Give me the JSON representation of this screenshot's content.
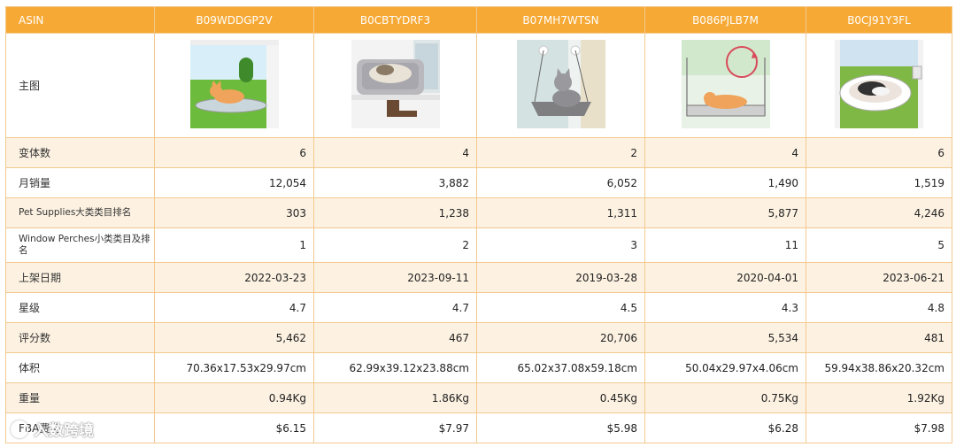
{
  "header": {
    "col0": "ASIN",
    "asins": [
      "B09WDDGP2V",
      "B0CBTYDRF3",
      "B07MH7WTSN",
      "B086PJLB7M",
      "B0CJ91Y3FL"
    ]
  },
  "rows": {
    "main_image": {
      "label": "主图"
    },
    "variants": {
      "label": "变体数",
      "values": [
        "6",
        "4",
        "2",
        "4",
        "6"
      ]
    },
    "monthly_sales": {
      "label": "月销量",
      "values": [
        "12,054",
        "3,882",
        "6,052",
        "1,490",
        "1,519"
      ]
    },
    "main_rank": {
      "label": "Pet Supplies大类类目排名",
      "values": [
        "303",
        "1,238",
        "1,311",
        "5,877",
        "4,246"
      ]
    },
    "sub_rank": {
      "label": "Window Perches小类类目及排名",
      "values": [
        "1",
        "2",
        "3",
        "11",
        "5"
      ]
    },
    "date": {
      "label": "上架日期",
      "values": [
        "2022-03-23",
        "2023-09-11",
        "2019-03-28",
        "2020-04-01",
        "2023-06-21"
      ]
    },
    "stars": {
      "label": "星级",
      "values": [
        "4.7",
        "4.7",
        "4.5",
        "4.3",
        "4.8"
      ]
    },
    "ratings": {
      "label": "评分数",
      "values": [
        "5,462",
        "467",
        "20,706",
        "5,534",
        "481"
      ]
    },
    "volume": {
      "label": "体积",
      "values": [
        "70.36x17.53x29.97cm",
        "62.99x39.12x23.88cm",
        "65.02x37.08x59.18cm",
        "50.04x29.97x4.06cm",
        "59.94x38.86x20.32cm"
      ]
    },
    "weight": {
      "label": "重量",
      "values": [
        "0.94Kg",
        "1.86Kg",
        "0.45Kg",
        "0.75Kg",
        "1.92Kg"
      ]
    },
    "fba": {
      "label": "FBA费用",
      "values": [
        "$6.15",
        "$7.97",
        "$5.98",
        "$6.28",
        "$7.98"
      ]
    }
  },
  "images": [
    "cat-window-perch-photo",
    "cat-hammock-bed-photo",
    "cat-suction-hammock-photo",
    "cat-perch-rotating-photo",
    "cat-round-bed-photo"
  ],
  "watermark": {
    "text": "入数跨境",
    "icon": "watermark-logo-icon"
  },
  "colors": {
    "header_bg": "#f7a935",
    "alt_row_bg": "#fdf2e2",
    "border": "#f2c98e"
  }
}
